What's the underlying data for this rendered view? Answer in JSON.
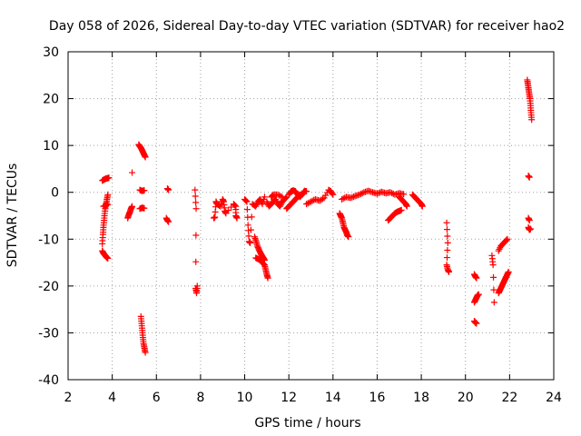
{
  "chart_data": {
    "type": "scatter",
    "title": "Day 058 of 2026, Sidereal Day-to-day VTEC variation (SDTVAR) for receiver hao2",
    "xlabel": "GPS time / hours",
    "ylabel": "SDTVAR / TECUs",
    "xlim": [
      2,
      24
    ],
    "ylim": [
      -40,
      30
    ],
    "x_ticks": [
      2,
      4,
      6,
      8,
      10,
      12,
      14,
      16,
      18,
      20,
      22,
      24
    ],
    "y_ticks": [
      -40,
      -30,
      -20,
      -10,
      0,
      10,
      20,
      30
    ],
    "x_tick_labels": [
      "2",
      "4",
      "6",
      "8",
      "10",
      "12",
      "14",
      "16",
      "18",
      "20",
      "22",
      "24"
    ],
    "y_tick_labels": [
      "-40",
      "-30",
      "-20",
      "-10",
      "0",
      "10",
      "20",
      "30"
    ],
    "grid": true,
    "marker": "+",
    "color": "#ff0000",
    "series": [
      {
        "name": "SDTVAR",
        "segments": [
          [
            [
              3.55,
              2.5
            ],
            [
              3.62,
              2.7
            ],
            [
              3.7,
              2.9
            ],
            [
              3.78,
              3.0
            ],
            [
              3.85,
              3.1
            ]
          ],
          [
            [
              3.55,
              -12.5
            ],
            [
              3.6,
              -13.0
            ],
            [
              3.65,
              -13.3
            ],
            [
              3.7,
              -13.6
            ],
            [
              3.75,
              -13.9
            ],
            [
              3.8,
              -14.1
            ]
          ],
          [
            [
              3.55,
              -11.0
            ],
            [
              3.58,
              -9.0
            ],
            [
              3.6,
              -7.5
            ],
            [
              3.63,
              -6.0
            ],
            [
              3.66,
              -4.5
            ],
            [
              3.7,
              -3.0
            ],
            [
              3.73,
              -2.5
            ],
            [
              3.76,
              -1.5
            ],
            [
              3.8,
              -0.5
            ]
          ],
          [
            [
              3.6,
              -3.0
            ],
            [
              3.7,
              -2.8
            ],
            [
              3.8,
              -2.6
            ]
          ],
          [
            [
              4.7,
              -5.5
            ],
            [
              4.75,
              -4.8
            ],
            [
              4.8,
              -4.2
            ],
            [
              4.85,
              -3.5
            ],
            [
              4.9,
              -3.0
            ]
          ],
          [
            [
              4.9,
              4.2
            ]
          ],
          [
            [
              5.2,
              10.2
            ],
            [
              5.25,
              9.8
            ],
            [
              5.3,
              9.5
            ],
            [
              5.35,
              9.0
            ],
            [
              5.4,
              8.5
            ],
            [
              5.45,
              8.0
            ],
            [
              5.5,
              7.5
            ]
          ],
          [
            [
              5.25,
              0.5
            ],
            [
              5.35,
              0.3
            ],
            [
              5.45,
              0.4
            ]
          ],
          [
            [
              5.25,
              -3.5
            ],
            [
              5.35,
              -3.3
            ],
            [
              5.45,
              -3.4
            ]
          ],
          [
            [
              5.3,
              -26.5
            ],
            [
              5.33,
              -28.0
            ],
            [
              5.36,
              -29.5
            ],
            [
              5.39,
              -31.0
            ],
            [
              5.42,
              -32.3
            ],
            [
              5.46,
              -33.3
            ],
            [
              5.5,
              -34.2
            ]
          ],
          [
            [
              6.5,
              0.8
            ],
            [
              6.55,
              0.5
            ]
          ],
          [
            [
              6.45,
              -5.5
            ],
            [
              6.5,
              -6.0
            ],
            [
              6.55,
              -6.3
            ]
          ],
          [
            [
              7.75,
              0.5
            ],
            [
              7.8,
              -3.5
            ],
            [
              7.78,
              -20.5
            ],
            [
              7.82,
              -21.5
            ],
            [
              7.85,
              -20.0
            ]
          ],
          [
            [
              8.6,
              -5.5
            ],
            [
              8.65,
              -5.3
            ],
            [
              8.7,
              -2.0
            ],
            [
              8.75,
              -2.5
            ],
            [
              8.9,
              -3.0
            ],
            [
              9.0,
              -1.5
            ],
            [
              9.05,
              -2.0
            ],
            [
              9.1,
              -4.0
            ],
            [
              9.15,
              -4.5
            ],
            [
              9.5,
              -2.5
            ],
            [
              9.6,
              -3.0
            ],
            [
              9.6,
              -5.0
            ],
            [
              9.65,
              -5.5
            ]
          ],
          [
            [
              10.0,
              -1.5
            ],
            [
              10.1,
              -2.0
            ],
            [
              10.15,
              -7.0
            ],
            [
              10.2,
              -10.5
            ],
            [
              10.25,
              -10.8
            ],
            [
              10.35,
              -2.5
            ],
            [
              10.5,
              -3.0
            ],
            [
              10.6,
              -2.0
            ],
            [
              10.7,
              -1.5
            ],
            [
              10.8,
              -2.5
            ],
            [
              10.9,
              -1.0
            ]
          ],
          [
            [
              10.45,
              -9.5
            ],
            [
              10.52,
              -10.5
            ],
            [
              10.58,
              -11.5
            ],
            [
              10.65,
              -12.3
            ],
            [
              10.72,
              -13.0
            ],
            [
              10.78,
              -13.5
            ],
            [
              10.85,
              -14.0
            ],
            [
              10.9,
              -14.5
            ]
          ],
          [
            [
              10.5,
              -14.0
            ],
            [
              10.6,
              -14.2
            ],
            [
              10.7,
              -14.5
            ],
            [
              10.8,
              -15.0
            ],
            [
              10.9,
              -15.5
            ],
            [
              10.95,
              -16.5
            ],
            [
              11.0,
              -17.5
            ],
            [
              11.05,
              -18.3
            ]
          ],
          [
            [
              11.0,
              -2.0
            ],
            [
              11.1,
              -3.0
            ],
            [
              11.2,
              -2.5
            ],
            [
              11.3,
              -2.0
            ],
            [
              11.4,
              -1.5
            ],
            [
              11.5,
              -2.5
            ],
            [
              11.6,
              -3.0
            ],
            [
              11.7,
              -2.0
            ],
            [
              11.8,
              -1.5
            ],
            [
              11.9,
              -1.0
            ]
          ],
          [
            [
              11.2,
              -1.0
            ],
            [
              11.3,
              -0.5
            ],
            [
              11.5,
              -0.5
            ],
            [
              11.7,
              -1.0
            ]
          ],
          [
            [
              12.0,
              -0.5
            ],
            [
              12.1,
              0.2
            ],
            [
              12.2,
              0.4
            ],
            [
              12.3,
              0.2
            ],
            [
              12.4,
              -0.5
            ],
            [
              12.5,
              -1.0
            ],
            [
              12.6,
              -0.5
            ],
            [
              12.7,
              0.3
            ],
            [
              12.8,
              0.2
            ]
          ],
          [
            [
              11.9,
              -3.5
            ],
            [
              12.0,
              -3.0
            ],
            [
              12.1,
              -2.5
            ],
            [
              12.2,
              -2.0
            ],
            [
              12.3,
              -1.5
            ],
            [
              12.4,
              -1.0
            ],
            [
              12.5,
              -0.5
            ]
          ],
          [
            [
              12.8,
              -2.5
            ],
            [
              13.0,
              -2.0
            ],
            [
              13.2,
              -1.5
            ],
            [
              13.4,
              -1.8
            ],
            [
              13.6,
              -1.2
            ],
            [
              13.8,
              0.5
            ],
            [
              13.9,
              0.2
            ],
            [
              14.0,
              -0.5
            ]
          ],
          [
            [
              14.3,
              -4.5
            ],
            [
              14.35,
              -5.0
            ],
            [
              14.4,
              -5.5
            ],
            [
              14.45,
              -6.5
            ],
            [
              14.5,
              -7.5
            ],
            [
              14.55,
              -8.0
            ],
            [
              14.6,
              -8.5
            ],
            [
              14.65,
              -9.2
            ],
            [
              14.7,
              -9.5
            ]
          ],
          [
            [
              14.4,
              -1.5
            ],
            [
              14.6,
              -1.0
            ],
            [
              14.8,
              -1.2
            ],
            [
              15.0,
              -0.8
            ],
            [
              15.2,
              -0.5
            ],
            [
              15.4,
              0.0
            ],
            [
              15.6,
              0.3
            ],
            [
              15.8,
              0.0
            ],
            [
              16.0,
              -0.3
            ],
            [
              16.2,
              0.1
            ],
            [
              16.4,
              -0.2
            ],
            [
              16.6,
              0.0
            ],
            [
              16.8,
              -0.5
            ],
            [
              17.0,
              -0.2
            ],
            [
              17.2,
              -0.4
            ]
          ],
          [
            [
              16.5,
              -6.0
            ],
            [
              16.6,
              -5.5
            ],
            [
              16.7,
              -5.0
            ],
            [
              16.8,
              -4.5
            ],
            [
              16.9,
              -4.2
            ],
            [
              17.0,
              -4.0
            ],
            [
              17.1,
              -3.8
            ]
          ],
          [
            [
              17.0,
              -1.0
            ],
            [
              17.1,
              -1.5
            ],
            [
              17.2,
              -2.0
            ],
            [
              17.3,
              -2.5
            ],
            [
              17.35,
              -3.0
            ]
          ],
          [
            [
              17.6,
              -0.5
            ],
            [
              17.7,
              -1.0
            ],
            [
              17.8,
              -1.5
            ],
            [
              17.9,
              -2.0
            ],
            [
              18.0,
              -2.5
            ],
            [
              18.05,
              -3.0
            ]
          ],
          [
            [
              19.15,
              -6.5
            ],
            [
              19.2,
              -10.8
            ],
            [
              19.15,
              -15.5
            ],
            [
              19.2,
              -16.5
            ],
            [
              19.25,
              -17.0
            ]
          ],
          [
            [
              20.4,
              -17.5
            ],
            [
              20.45,
              -18.0
            ],
            [
              20.5,
              -18.3
            ]
          ],
          [
            [
              20.4,
              -23.5
            ],
            [
              20.45,
              -23.0
            ],
            [
              20.5,
              -22.5
            ],
            [
              20.55,
              -22.0
            ],
            [
              20.6,
              -21.8
            ]
          ],
          [
            [
              20.4,
              -27.5
            ],
            [
              20.45,
              -27.8
            ],
            [
              20.5,
              -28.0
            ]
          ],
          [
            [
              21.2,
              -13.5
            ],
            [
              21.25,
              -15.5
            ],
            [
              21.3,
              -23.5
            ]
          ],
          [
            [
              21.5,
              -12.5
            ],
            [
              21.6,
              -11.5
            ],
            [
              21.7,
              -11.0
            ],
            [
              21.8,
              -10.5
            ],
            [
              21.9,
              -10.0
            ]
          ],
          [
            [
              21.5,
              -21.5
            ],
            [
              21.55,
              -21.0
            ],
            [
              21.6,
              -20.5
            ],
            [
              21.65,
              -20.0
            ],
            [
              21.7,
              -19.5
            ],
            [
              21.75,
              -19.0
            ],
            [
              21.8,
              -18.5
            ],
            [
              21.85,
              -18.0
            ],
            [
              21.9,
              -17.5
            ],
            [
              21.95,
              -17.0
            ]
          ],
          [
            [
              22.8,
              24.0
            ],
            [
              22.83,
              23.0
            ],
            [
              22.86,
              22.0
            ],
            [
              22.89,
              21.0
            ],
            [
              22.92,
              20.0
            ],
            [
              22.95,
              18.5
            ],
            [
              22.97,
              17.0
            ],
            [
              23.0,
              15.5
            ]
          ],
          [
            [
              22.85,
              3.5
            ],
            [
              22.9,
              3.2
            ]
          ],
          [
            [
              22.85,
              -5.5
            ],
            [
              22.9,
              -6.0
            ]
          ],
          [
            [
              22.85,
              -7.5
            ],
            [
              22.9,
              -8.0
            ],
            [
              22.95,
              -7.8
            ]
          ]
        ]
      }
    ]
  }
}
